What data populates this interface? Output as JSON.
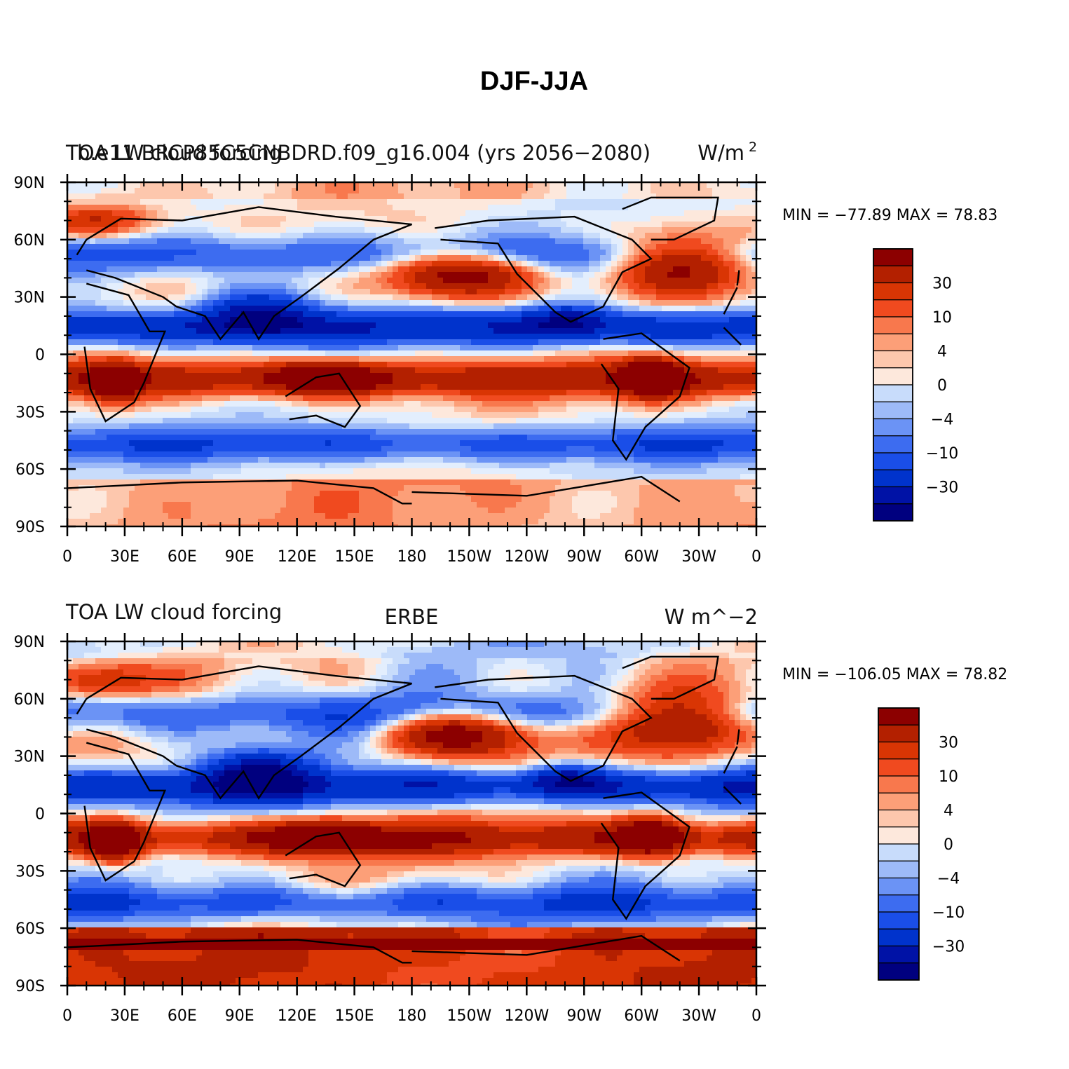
{
  "figure_title": "DJF-JJA",
  "colors": {
    "levels": [
      "#00007f",
      "#0012a6",
      "#0033cc",
      "#1a4ee8",
      "#3d6cf0",
      "#6b93f5",
      "#9dbaf8",
      "#c8dcfb",
      "#e3eefd",
      "#fde8dc",
      "#fdc7ad",
      "#fc9f78",
      "#f8784d",
      "#f04a1f",
      "#d93504",
      "#b32000",
      "#8c0000"
    ],
    "coast": "#000000"
  },
  "panels": [
    {
      "id": "model",
      "label_left_a": "TOA LW cloud forcing",
      "label_left_b": "b.e11.BRCP85C5CNBDRD.f09_g16.004 (yrs 2056−2080)",
      "label_right": "W/m",
      "label_right_sup": "2",
      "label_center": "",
      "min_max_text": "MIN = −77.89 MAX =  78.83",
      "min": -77.89,
      "max": 78.83
    },
    {
      "id": "obs",
      "label_left_a": "TOA LW cloud forcing",
      "label_left_b": "",
      "label_right": "W m^−2",
      "label_right_sup": "",
      "label_center": "ERBE",
      "min_max_text": "MIN = −106.05 MAX =  78.82",
      "min": -106.05,
      "max": 78.82
    }
  ],
  "lat_ticks": [
    "90N",
    "60N",
    "30N",
    "0",
    "30S",
    "60S",
    "90S"
  ],
  "lon_ticks": [
    "0",
    "30E",
    "60E",
    "90E",
    "120E",
    "150E",
    "180",
    "150W",
    "120W",
    "90W",
    "60W",
    "30W",
    "0"
  ],
  "colorbar_labels": [
    "30",
    "10",
    "4",
    "0",
    "−4",
    "−10",
    "−30"
  ],
  "chart_data": [
    {
      "type": "heatmap",
      "title": "DJF-JJA",
      "subtitle": "b.e11.BRCP85C5CNBDRD.f09_g16.004 (yrs 2056−2080)",
      "variable": "TOA LW cloud forcing",
      "units": "W/m^2",
      "xlim": [
        0,
        360
      ],
      "ylim": [
        -90,
        90
      ],
      "min": -77.89,
      "max": 78.83
    },
    {
      "type": "heatmap",
      "title": "ERBE",
      "variable": "TOA LW cloud forcing",
      "units": "W m^−2",
      "xlim": [
        0,
        360
      ],
      "ylim": [
        -90,
        90
      ],
      "min": -106.05,
      "max": 78.82
    }
  ]
}
